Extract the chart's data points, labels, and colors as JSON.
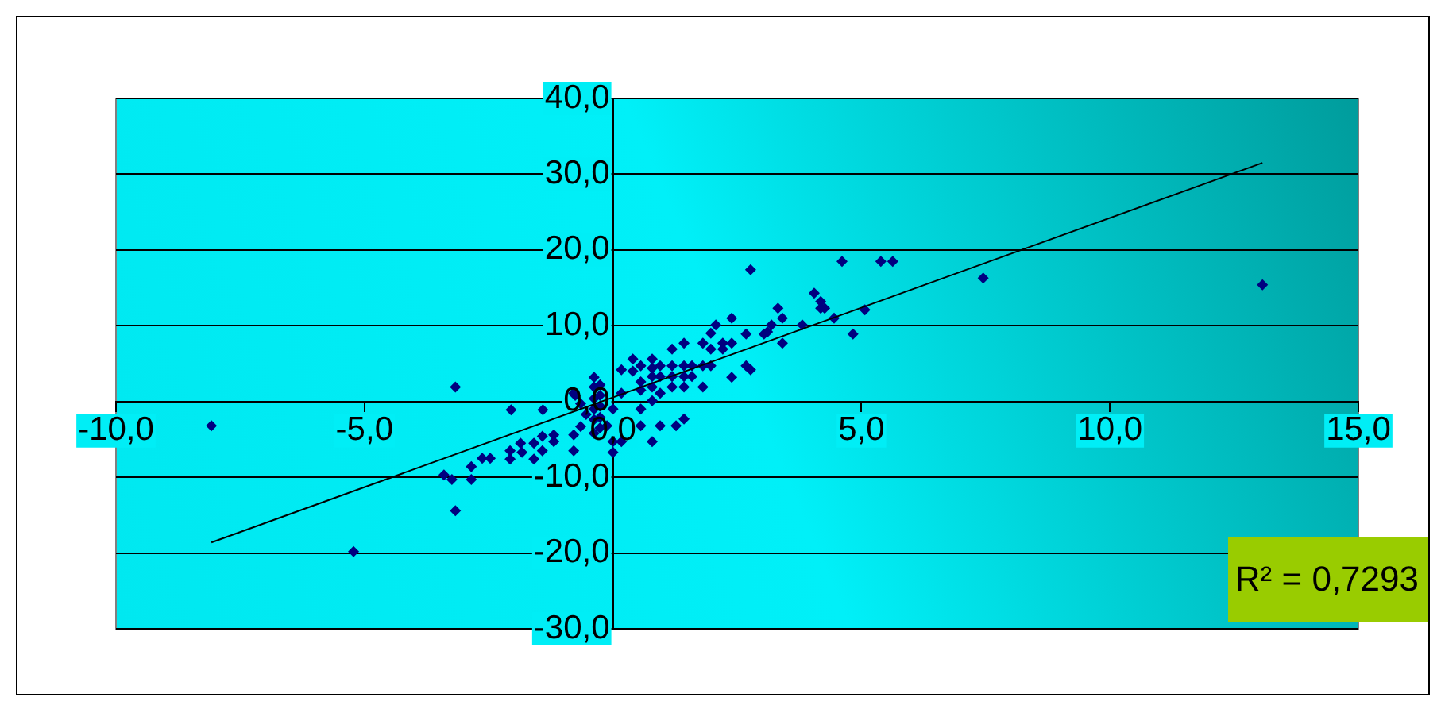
{
  "chart_data": {
    "type": "scatter",
    "xlim": [
      -10,
      15
    ],
    "ylim": [
      -30,
      40
    ],
    "xticks": [
      {
        "value": -10,
        "label": "-10,0"
      },
      {
        "value": -5,
        "label": "-5,0"
      },
      {
        "value": 0,
        "label": "0,0"
      },
      {
        "value": 5,
        "label": "5,0"
      },
      {
        "value": 10,
        "label": "10,0"
      },
      {
        "value": 15,
        "label": "15,0"
      }
    ],
    "yticks": [
      {
        "value": -30,
        "label": "-30,0"
      },
      {
        "value": -20,
        "label": "-20,0"
      },
      {
        "value": -10,
        "label": "-10,0"
      },
      {
        "value": 0,
        "label": "0,0"
      },
      {
        "value": 10,
        "label": "10,0"
      },
      {
        "value": 20,
        "label": "20,0"
      },
      {
        "value": 30,
        "label": "30,0"
      },
      {
        "value": 40,
        "label": "40,0"
      }
    ],
    "grid": "y",
    "legend": false,
    "series": [
      {
        "color": "#000080",
        "marker": "diamond",
        "x": [
          -8.08,
          -3.17,
          -5.22,
          -3.17,
          -3.4,
          -3.24,
          -2.85,
          -2.85,
          -2.63,
          -2.47,
          -2.05,
          -1.41,
          -2.07,
          -1.86,
          -2.07,
          -1.83,
          -1.59,
          -1.59,
          -1.42,
          -1.42,
          -1.19,
          -1.19,
          -0.79,
          -0.79,
          -0.65,
          -0.79,
          -0.65,
          -0.38,
          -0.38,
          -0.38,
          -0.38,
          -0.54,
          -0.76,
          -0.38,
          -0.38,
          -0.26,
          -0.26,
          -0.26,
          -0.26,
          -0.26,
          -0.12,
          0.0,
          0.0,
          0.17,
          0.0,
          0.17,
          0.17,
          0.4,
          0.4,
          0.56,
          0.56,
          0.56,
          0.56,
          0.56,
          0.79,
          0.79,
          0.79,
          0.79,
          0.79,
          0.79,
          0.95,
          0.95,
          0.95,
          0.95,
          1.19,
          1.19,
          1.19,
          1.19,
          1.27,
          1.43,
          1.43,
          1.43,
          1.43,
          1.43,
          1.59,
          1.59,
          1.81,
          1.81,
          1.81,
          1.97,
          1.97,
          1.97,
          2.07,
          2.21,
          2.21,
          2.39,
          2.39,
          2.39,
          2.68,
          2.77,
          2.68,
          2.77,
          3.04,
          3.11,
          3.19,
          3.32,
          3.41,
          3.41,
          3.81,
          4.05,
          4.18,
          4.18,
          4.26,
          4.45,
          4.61,
          4.83,
          5.07,
          5.39,
          5.63,
          7.45,
          13.07
        ],
        "values": [
          -3.2,
          1.9,
          -19.8,
          -14.4,
          -9.7,
          -10.3,
          -8.6,
          -10.3,
          -7.5,
          -7.5,
          -1.1,
          -1.1,
          -6.5,
          -5.5,
          -7.6,
          -6.7,
          -5.5,
          -7.6,
          -6.5,
          -4.6,
          -5.3,
          -4.4,
          -6.5,
          -4.4,
          -3.3,
          1.1,
          -0.3,
          3.2,
          -1.0,
          -2.4,
          -4.2,
          -1.7,
          0.8,
          1.9,
          0.4,
          2.2,
          0.8,
          -0.6,
          -2.1,
          -3.5,
          -3.2,
          -5.3,
          -6.7,
          -5.3,
          -1.0,
          4.2,
          1.1,
          5.6,
          4.0,
          4.7,
          2.6,
          1.5,
          -1.0,
          -3.2,
          5.6,
          4.4,
          3.3,
          1.9,
          0.1,
          -5.3,
          4.7,
          3.3,
          1.1,
          -3.2,
          6.9,
          4.7,
          3.3,
          1.9,
          -3.2,
          7.7,
          4.7,
          3.3,
          1.9,
          -2.3,
          4.7,
          3.3,
          7.7,
          4.7,
          1.9,
          9.0,
          6.9,
          4.7,
          10.1,
          7.7,
          6.9,
          7.7,
          11.0,
          3.2,
          8.9,
          17.4,
          4.7,
          4.2,
          8.9,
          9.2,
          10.1,
          12.3,
          11.0,
          7.7,
          10.1,
          14.3,
          13.2,
          12.3,
          12.3,
          11.0,
          18.5,
          8.9,
          12.1,
          18.5,
          18.5,
          16.3,
          15.4
        ]
      },
      {
        "type": "line",
        "color": "#000000",
        "marker": "none",
        "x": [
          -8.08,
          13.07
        ],
        "values": [
          -18.6,
          31.5
        ]
      }
    ],
    "annotations": [
      "R² = 0,7293"
    ]
  }
}
